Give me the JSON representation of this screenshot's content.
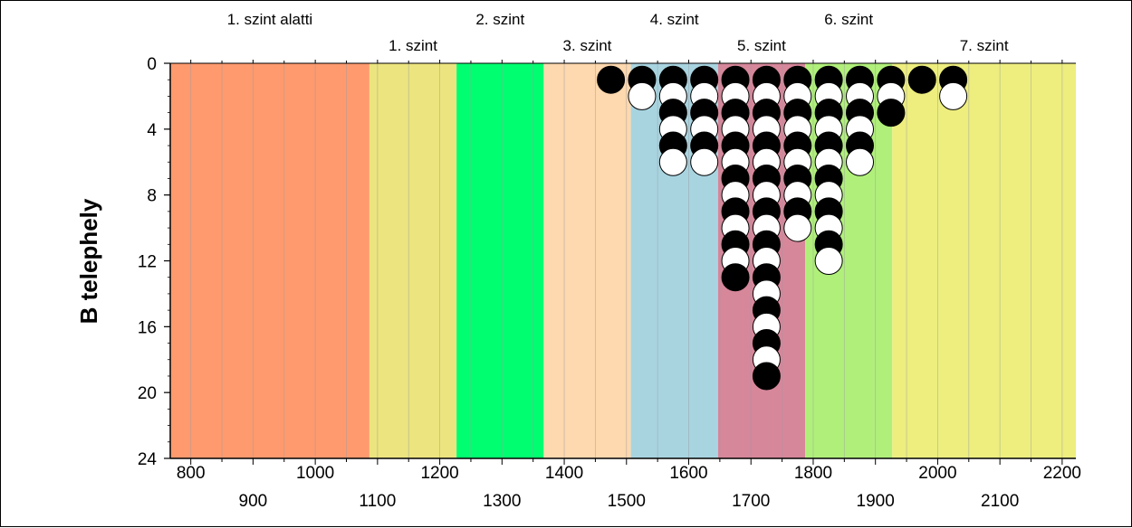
{
  "chart_data": {
    "type": "dot-histogram",
    "ylabel": "B telephely",
    "xlim": [
      767,
      2222
    ],
    "ylim": [
      0,
      24
    ],
    "y_inverted": true,
    "y_ticks": [
      "0",
      "4",
      "8",
      "12",
      "16",
      "20",
      "24"
    ],
    "x_ticks_upper": [
      "800",
      "1000",
      "1200",
      "1400",
      "1600",
      "1800",
      "2000",
      "2200"
    ],
    "x_ticks_lower": [
      "900",
      "1100",
      "1300",
      "1500",
      "1700",
      "1900",
      "2100"
    ],
    "bands": [
      {
        "label": "1. szint alatti",
        "from": 767,
        "to": 1087,
        "color": "#FF9A6E",
        "label_row": "upper"
      },
      {
        "label": "1. szint",
        "from": 1087,
        "to": 1227,
        "color": "#ECE47E",
        "label_row": "lower"
      },
      {
        "label": "2. szint",
        "from": 1227,
        "to": 1367,
        "color": "#00FF70",
        "label_row": "upper"
      },
      {
        "label": "3. szint",
        "from": 1367,
        "to": 1507,
        "color": "#FED8AE",
        "label_row": "lower"
      },
      {
        "label": "4. szint",
        "from": 1507,
        "to": 1647,
        "color": "#A8D4E0",
        "label_row": "upper"
      },
      {
        "label": "5. szint",
        "from": 1647,
        "to": 1787,
        "color": "#D6879A",
        "label_row": "lower"
      },
      {
        "label": "6. szint",
        "from": 1787,
        "to": 1927,
        "color": "#B0F07A",
        "label_row": "upper"
      },
      {
        "label": "7. szint",
        "from": 1927,
        "to": 2222,
        "color": "#EDEE7E",
        "label_row": "lower"
      }
    ],
    "grid_minor_step": 50,
    "columns": [
      {
        "x": 1475,
        "count": 1
      },
      {
        "x": 1525,
        "count": 2
      },
      {
        "x": 1575,
        "count": 6
      },
      {
        "x": 1625,
        "count": 6
      },
      {
        "x": 1675,
        "count": 13
      },
      {
        "x": 1725,
        "count": 19
      },
      {
        "x": 1775,
        "count": 10
      },
      {
        "x": 1825,
        "count": 12
      },
      {
        "x": 1875,
        "count": 6
      },
      {
        "x": 1925,
        "count": 3
      },
      {
        "x": 1975,
        "count": 1
      },
      {
        "x": 2025,
        "count": 2
      }
    ],
    "dot_colors": [
      "#000000",
      "#FFFFFF"
    ]
  }
}
